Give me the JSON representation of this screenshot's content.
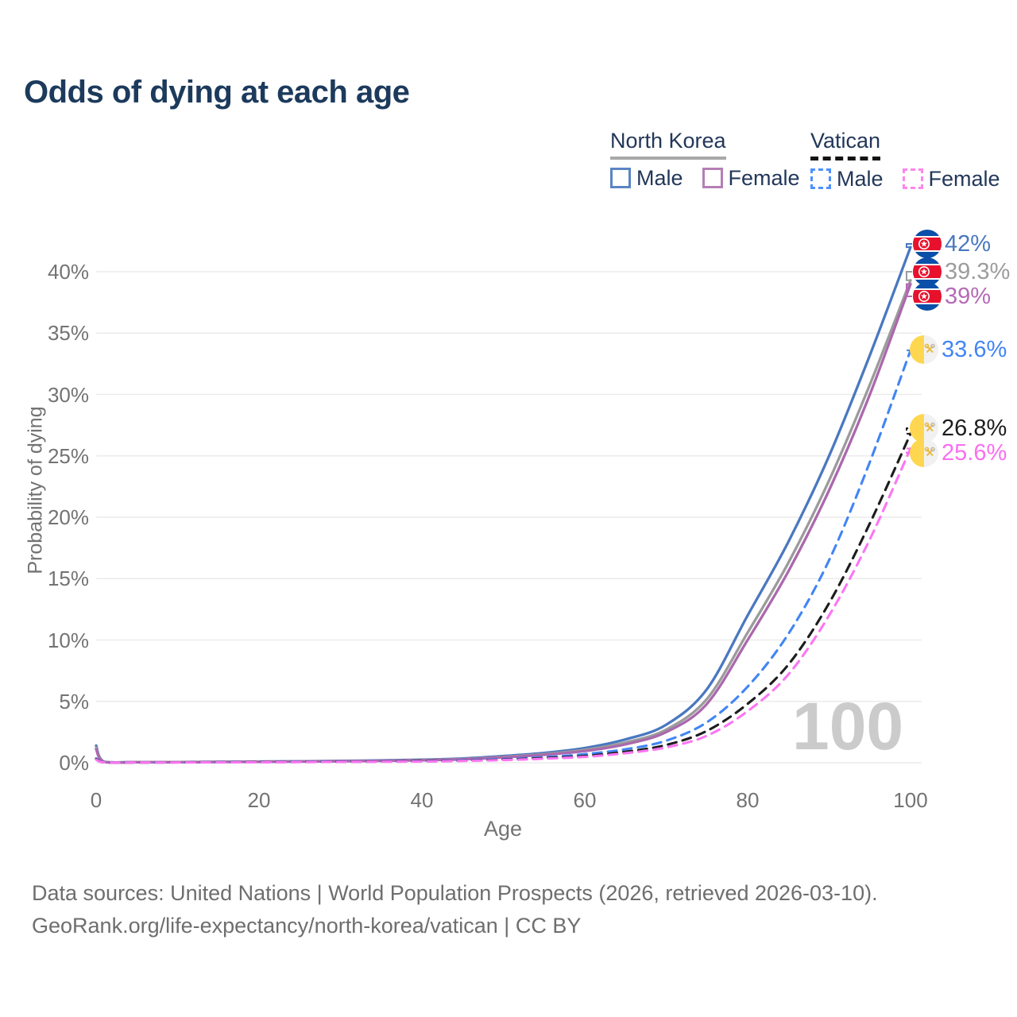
{
  "title": "Odds of dying at each age",
  "watermark": "100",
  "legend": {
    "groups": [
      {
        "label": "North Korea",
        "line_style": "solid",
        "underline_color": "#a8a8a8",
        "items": [
          {
            "label": "Male",
            "color": "#5b84c4"
          },
          {
            "label": "Female",
            "color": "#b47fb5"
          }
        ]
      },
      {
        "label": "Vatican",
        "line_style": "dashed",
        "underline_color": "#141414",
        "items": [
          {
            "label": "Male",
            "color": "#4d90fe"
          },
          {
            "label": "Female",
            "color": "#ff85ec"
          }
        ]
      }
    ]
  },
  "axis": {
    "x_title": "Age",
    "y_title": "Probability of dying"
  },
  "chart_data": {
    "type": "line",
    "title": "Odds of dying at each age",
    "xlabel": "Age",
    "ylabel": "Probability of dying",
    "xlim": [
      0,
      100
    ],
    "ylim": [
      0,
      43
    ],
    "grid": true,
    "x_ticks": [
      0,
      20,
      40,
      60,
      80,
      100
    ],
    "y_ticks": [
      {
        "label": "0%",
        "value": 0
      },
      {
        "label": "5%",
        "value": 5
      },
      {
        "label": "10%",
        "value": 10
      },
      {
        "label": "15%",
        "value": 15
      },
      {
        "label": "20%",
        "value": 20
      },
      {
        "label": "25%",
        "value": 25
      },
      {
        "label": "30%",
        "value": 30
      },
      {
        "label": "35%",
        "value": 35
      },
      {
        "label": "40%",
        "value": 40
      }
    ],
    "x": [
      0,
      1,
      5,
      10,
      20,
      30,
      40,
      45,
      50,
      55,
      60,
      65,
      70,
      75,
      80,
      85,
      90,
      95,
      100
    ],
    "series": [
      {
        "name": "North Korea Male",
        "style": "solid",
        "color": "#4a78c0",
        "end_label": "42%",
        "values": [
          1.4,
          0.08,
          0.05,
          0.05,
          0.1,
          0.15,
          0.25,
          0.35,
          0.55,
          0.8,
          1.2,
          1.9,
          3.1,
          6.0,
          12.0,
          18.0,
          25.0,
          33.2,
          42.0
        ]
      },
      {
        "name": "North Korea Both sexes",
        "style": "solid",
        "color": "#9b9b9b",
        "end_label": "39.3%",
        "values": [
          1.25,
          0.07,
          0.05,
          0.05,
          0.09,
          0.13,
          0.22,
          0.3,
          0.48,
          0.7,
          1.05,
          1.65,
          2.7,
          5.2,
          10.6,
          16.3,
          23.0,
          30.8,
          39.3
        ]
      },
      {
        "name": "North Korea Female",
        "style": "solid",
        "color": "#ab68ad",
        "end_label": "39%",
        "values": [
          1.1,
          0.06,
          0.04,
          0.04,
          0.08,
          0.12,
          0.2,
          0.28,
          0.44,
          0.65,
          0.95,
          1.5,
          2.5,
          4.8,
          10.0,
          15.6,
          22.2,
          30.0,
          39.0
        ]
      },
      {
        "name": "Vatican Male",
        "style": "dashed",
        "color": "#4285f4",
        "end_label": "33.6%",
        "values": [
          0.35,
          0.04,
          0.03,
          0.03,
          0.06,
          0.09,
          0.14,
          0.2,
          0.3,
          0.45,
          0.7,
          1.1,
          1.8,
          3.3,
          6.2,
          10.5,
          16.5,
          24.5,
          33.6
        ]
      },
      {
        "name": "Vatican Both sexes",
        "style": "dashed",
        "color": "#1c1c1c",
        "end_label": "26.8%",
        "values": [
          0.3,
          0.03,
          0.02,
          0.03,
          0.05,
          0.08,
          0.12,
          0.17,
          0.25,
          0.38,
          0.55,
          0.9,
          1.45,
          2.6,
          4.8,
          8.0,
          13.0,
          19.5,
          26.8
        ]
      },
      {
        "name": "Vatican Female",
        "style": "dashed",
        "color": "#fb76f3",
        "end_label": "25.6%",
        "values": [
          0.25,
          0.03,
          0.02,
          0.02,
          0.04,
          0.07,
          0.1,
          0.15,
          0.22,
          0.33,
          0.48,
          0.78,
          1.25,
          2.2,
          4.2,
          7.2,
          12.0,
          18.2,
          25.6
        ]
      }
    ]
  },
  "annotations": [
    {
      "label": "42%",
      "flag": "north-korea",
      "color": "#4a78c0",
      "value": 42.0
    },
    {
      "label": "39.3%",
      "flag": "north-korea",
      "color": "#9c9c9c",
      "value": 39.3
    },
    {
      "label": "39%",
      "flag": "north-korea",
      "color": "#b56ab5",
      "value": 39.0
    },
    {
      "label": "33.6%",
      "flag": "vatican",
      "color": "#4285f4",
      "value": 33.6
    },
    {
      "label": "26.8%",
      "flag": "vatican",
      "color": "#1d1d1d",
      "value": 26.8
    },
    {
      "label": "25.6%",
      "flag": "vatican",
      "color": "#fb6ef0",
      "value": 25.6
    }
  ],
  "footer": {
    "line1": "Data sources: United Nations | World Population Prospects (2026, retrieved 2026-03-10).",
    "line2": "GeoRank.org/life-expectancy/north-korea/vatican | CC BY"
  }
}
